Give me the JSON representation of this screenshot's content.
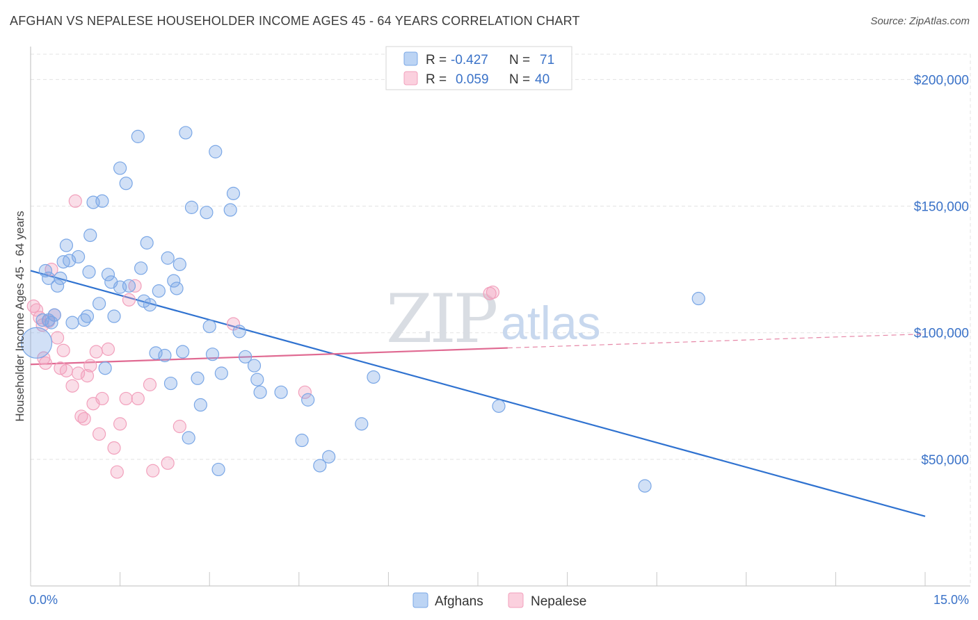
{
  "title": "AFGHAN VS NEPALESE HOUSEHOLDER INCOME AGES 45 - 64 YEARS CORRELATION CHART",
  "source": "Source: ZipAtlas.com",
  "watermark": {
    "zip": "ZIP",
    "atlas": "atlas"
  },
  "colors": {
    "afghans": "#7aa7e6",
    "nepalese": "#f2a0bc",
    "afghans_line": "#2f72d0",
    "nepalese_line": "#e06a92",
    "axis_text": "#3a72c8"
  },
  "legend": {
    "rows": [
      {
        "r_label": "R =",
        "r_value": "-0.427",
        "n_label": "N =",
        "n_value": "71"
      },
      {
        "r_label": "R =",
        "r_value": "0.059",
        "n_label": "N =",
        "n_value": "40"
      }
    ]
  },
  "bottom_legend": [
    "Afghans",
    "Nepalese"
  ],
  "chart_data": {
    "type": "scatter",
    "title": "AFGHAN VS NEPALESE HOUSEHOLDER INCOME AGES 45 - 64 YEARS CORRELATION CHART",
    "xlabel": "",
    "ylabel": "Householder Income Ages 45 - 64 years",
    "xlim": [
      0,
      15
    ],
    "ylim": [
      0,
      210000
    ],
    "x_tick_labels": [
      "0.0%",
      "15.0%"
    ],
    "y_ticks": [
      50000,
      100000,
      150000,
      200000
    ],
    "y_tick_labels": [
      "$50,000",
      "$100,000",
      "$150,000",
      "$200,000"
    ],
    "grid": true,
    "legend_position": "top-center",
    "series": [
      {
        "name": "Afghans",
        "r": -0.427,
        "n": 71,
        "trend": {
          "x": [
            0,
            15
          ],
          "y": [
            124500,
            27500
          ]
        },
        "points": [
          [
            0.1,
            96000
          ],
          [
            0.2,
            105000
          ],
          [
            0.25,
            124500
          ],
          [
            0.3,
            121500
          ],
          [
            0.35,
            104000
          ],
          [
            0.4,
            107000
          ],
          [
            0.45,
            118500
          ],
          [
            0.5,
            121500
          ],
          [
            0.55,
            128000
          ],
          [
            0.6,
            134500
          ],
          [
            0.65,
            128500
          ],
          [
            0.7,
            104000
          ],
          [
            0.8,
            130000
          ],
          [
            0.9,
            105000
          ],
          [
            0.95,
            106500
          ],
          [
            0.98,
            124000
          ],
          [
            1.0,
            138500
          ],
          [
            1.05,
            151500
          ],
          [
            1.15,
            111500
          ],
          [
            1.2,
            152000
          ],
          [
            1.25,
            86000
          ],
          [
            1.3,
            123000
          ],
          [
            1.35,
            120000
          ],
          [
            1.4,
            106500
          ],
          [
            1.5,
            118000
          ],
          [
            1.5,
            165000
          ],
          [
            1.6,
            159000
          ],
          [
            1.65,
            118500
          ],
          [
            1.8,
            177500
          ],
          [
            1.85,
            125500
          ],
          [
            1.9,
            112500
          ],
          [
            1.95,
            135500
          ],
          [
            2.0,
            111000
          ],
          [
            2.1,
            92000
          ],
          [
            2.15,
            116500
          ],
          [
            2.25,
            91000
          ],
          [
            2.3,
            129500
          ],
          [
            2.35,
            80000
          ],
          [
            2.4,
            120500
          ],
          [
            2.45,
            117500
          ],
          [
            2.5,
            127000
          ],
          [
            2.55,
            92500
          ],
          [
            2.6,
            179000
          ],
          [
            2.65,
            58500
          ],
          [
            2.7,
            149500
          ],
          [
            2.8,
            82000
          ],
          [
            2.85,
            71500
          ],
          [
            2.95,
            147500
          ],
          [
            3.0,
            102500
          ],
          [
            3.05,
            91500
          ],
          [
            3.1,
            171500
          ],
          [
            3.15,
            46000
          ],
          [
            3.2,
            84000
          ],
          [
            3.35,
            148500
          ],
          [
            3.4,
            155000
          ],
          [
            3.5,
            100500
          ],
          [
            3.6,
            90500
          ],
          [
            3.75,
            87000
          ],
          [
            3.8,
            81500
          ],
          [
            3.85,
            76500
          ],
          [
            4.2,
            76500
          ],
          [
            4.55,
            57500
          ],
          [
            4.65,
            73500
          ],
          [
            4.85,
            47500
          ],
          [
            5.0,
            51000
          ],
          [
            5.55,
            64000
          ],
          [
            5.75,
            82500
          ],
          [
            7.85,
            71000
          ],
          [
            10.3,
            39500
          ],
          [
            11.2,
            113500
          ],
          [
            0.3,
            105000
          ]
        ]
      },
      {
        "name": "Nepalese",
        "r": 0.059,
        "n": 40,
        "trend": {
          "x": [
            0,
            8
          ],
          "y": [
            87500,
            94000
          ],
          "dashed_x": [
            8,
            15
          ],
          "dashed_y": [
            94000,
            99500
          ]
        },
        "points": [
          [
            0.05,
            110500
          ],
          [
            0.1,
            109000
          ],
          [
            0.15,
            106000
          ],
          [
            0.2,
            103000
          ],
          [
            0.22,
            90000
          ],
          [
            0.3,
            104500
          ],
          [
            0.35,
            125000
          ],
          [
            0.4,
            107000
          ],
          [
            0.45,
            98000
          ],
          [
            0.5,
            86000
          ],
          [
            0.55,
            93000
          ],
          [
            0.6,
            85000
          ],
          [
            0.7,
            79000
          ],
          [
            0.75,
            152000
          ],
          [
            0.8,
            84000
          ],
          [
            0.85,
            67000
          ],
          [
            0.9,
            66000
          ],
          [
            0.95,
            83000
          ],
          [
            1.0,
            87000
          ],
          [
            1.05,
            72000
          ],
          [
            1.1,
            92500
          ],
          [
            1.15,
            60000
          ],
          [
            1.2,
            74000
          ],
          [
            1.3,
            93500
          ],
          [
            1.4,
            54500
          ],
          [
            1.45,
            45000
          ],
          [
            1.5,
            64000
          ],
          [
            1.6,
            74000
          ],
          [
            1.65,
            113000
          ],
          [
            1.75,
            118500
          ],
          [
            1.8,
            74000
          ],
          [
            2.0,
            79500
          ],
          [
            2.05,
            45500
          ],
          [
            2.3,
            48500
          ],
          [
            2.5,
            63000
          ],
          [
            3.4,
            103500
          ],
          [
            4.6,
            76500
          ],
          [
            7.7,
            115500
          ],
          [
            7.75,
            116000
          ],
          [
            0.25,
            88000
          ]
        ]
      }
    ]
  }
}
